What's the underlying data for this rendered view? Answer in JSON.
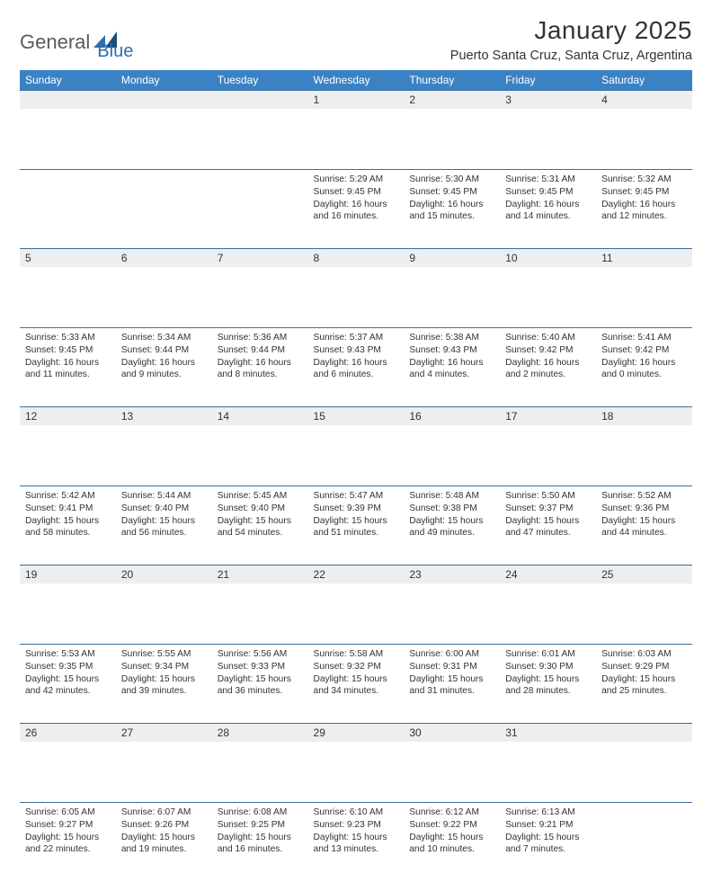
{
  "logo": {
    "part1": "General",
    "part2": "Blue"
  },
  "title": "January 2025",
  "location": "Puerto Santa Cruz, Santa Cruz, Argentina",
  "colors": {
    "headerBg": "#3b82c4",
    "headerText": "#ffffff",
    "dayNumBg": "#eceef0",
    "border": "#3b6fa0",
    "text": "#333333",
    "logoGray": "#5a5a5a",
    "logoBlue": "#2b6fab"
  },
  "dayHeaders": [
    "Sunday",
    "Monday",
    "Tuesday",
    "Wednesday",
    "Thursday",
    "Friday",
    "Saturday"
  ],
  "weeks": [
    [
      null,
      null,
      null,
      {
        "n": "1",
        "sr": "5:29 AM",
        "ss": "9:45 PM",
        "dl": "16 hours and 16 minutes."
      },
      {
        "n": "2",
        "sr": "5:30 AM",
        "ss": "9:45 PM",
        "dl": "16 hours and 15 minutes."
      },
      {
        "n": "3",
        "sr": "5:31 AM",
        "ss": "9:45 PM",
        "dl": "16 hours and 14 minutes."
      },
      {
        "n": "4",
        "sr": "5:32 AM",
        "ss": "9:45 PM",
        "dl": "16 hours and 12 minutes."
      }
    ],
    [
      {
        "n": "5",
        "sr": "5:33 AM",
        "ss": "9:45 PM",
        "dl": "16 hours and 11 minutes."
      },
      {
        "n": "6",
        "sr": "5:34 AM",
        "ss": "9:44 PM",
        "dl": "16 hours and 9 minutes."
      },
      {
        "n": "7",
        "sr": "5:36 AM",
        "ss": "9:44 PM",
        "dl": "16 hours and 8 minutes."
      },
      {
        "n": "8",
        "sr": "5:37 AM",
        "ss": "9:43 PM",
        "dl": "16 hours and 6 minutes."
      },
      {
        "n": "9",
        "sr": "5:38 AM",
        "ss": "9:43 PM",
        "dl": "16 hours and 4 minutes."
      },
      {
        "n": "10",
        "sr": "5:40 AM",
        "ss": "9:42 PM",
        "dl": "16 hours and 2 minutes."
      },
      {
        "n": "11",
        "sr": "5:41 AM",
        "ss": "9:42 PM",
        "dl": "16 hours and 0 minutes."
      }
    ],
    [
      {
        "n": "12",
        "sr": "5:42 AM",
        "ss": "9:41 PM",
        "dl": "15 hours and 58 minutes."
      },
      {
        "n": "13",
        "sr": "5:44 AM",
        "ss": "9:40 PM",
        "dl": "15 hours and 56 minutes."
      },
      {
        "n": "14",
        "sr": "5:45 AM",
        "ss": "9:40 PM",
        "dl": "15 hours and 54 minutes."
      },
      {
        "n": "15",
        "sr": "5:47 AM",
        "ss": "9:39 PM",
        "dl": "15 hours and 51 minutes."
      },
      {
        "n": "16",
        "sr": "5:48 AM",
        "ss": "9:38 PM",
        "dl": "15 hours and 49 minutes."
      },
      {
        "n": "17",
        "sr": "5:50 AM",
        "ss": "9:37 PM",
        "dl": "15 hours and 47 minutes."
      },
      {
        "n": "18",
        "sr": "5:52 AM",
        "ss": "9:36 PM",
        "dl": "15 hours and 44 minutes."
      }
    ],
    [
      {
        "n": "19",
        "sr": "5:53 AM",
        "ss": "9:35 PM",
        "dl": "15 hours and 42 minutes."
      },
      {
        "n": "20",
        "sr": "5:55 AM",
        "ss": "9:34 PM",
        "dl": "15 hours and 39 minutes."
      },
      {
        "n": "21",
        "sr": "5:56 AM",
        "ss": "9:33 PM",
        "dl": "15 hours and 36 minutes."
      },
      {
        "n": "22",
        "sr": "5:58 AM",
        "ss": "9:32 PM",
        "dl": "15 hours and 34 minutes."
      },
      {
        "n": "23",
        "sr": "6:00 AM",
        "ss": "9:31 PM",
        "dl": "15 hours and 31 minutes."
      },
      {
        "n": "24",
        "sr": "6:01 AM",
        "ss": "9:30 PM",
        "dl": "15 hours and 28 minutes."
      },
      {
        "n": "25",
        "sr": "6:03 AM",
        "ss": "9:29 PM",
        "dl": "15 hours and 25 minutes."
      }
    ],
    [
      {
        "n": "26",
        "sr": "6:05 AM",
        "ss": "9:27 PM",
        "dl": "15 hours and 22 minutes."
      },
      {
        "n": "27",
        "sr": "6:07 AM",
        "ss": "9:26 PM",
        "dl": "15 hours and 19 minutes."
      },
      {
        "n": "28",
        "sr": "6:08 AM",
        "ss": "9:25 PM",
        "dl": "15 hours and 16 minutes."
      },
      {
        "n": "29",
        "sr": "6:10 AM",
        "ss": "9:23 PM",
        "dl": "15 hours and 13 minutes."
      },
      {
        "n": "30",
        "sr": "6:12 AM",
        "ss": "9:22 PM",
        "dl": "15 hours and 10 minutes."
      },
      {
        "n": "31",
        "sr": "6:13 AM",
        "ss": "9:21 PM",
        "dl": "15 hours and 7 minutes."
      },
      null
    ]
  ],
  "labels": {
    "sunrise": "Sunrise: ",
    "sunset": "Sunset: ",
    "daylight": "Daylight: "
  }
}
